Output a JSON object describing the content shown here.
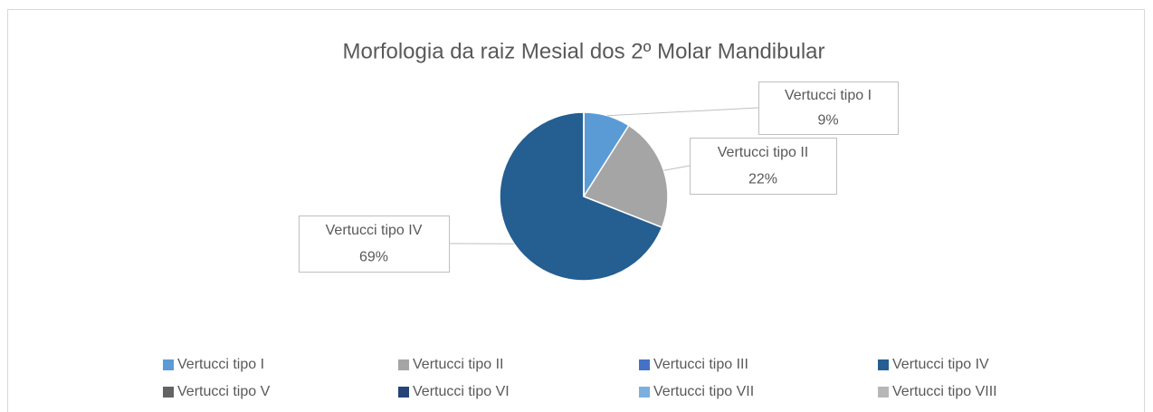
{
  "chart_data": {
    "type": "pie",
    "title": "Morfologia da raiz Mesial dos 2º Molar Mandibular",
    "categories": [
      "Vertucci tipo I",
      "Vertucci tipo II",
      "Vertucci tipo III",
      "Vertucci tipo IV",
      "Vertucci tipo V",
      "Vertucci tipo VI",
      "Vertucci tipo VII",
      "Vertucci tipo VIII"
    ],
    "values": [
      9,
      22,
      0,
      69,
      0,
      0,
      0,
      0
    ],
    "value_labels": [
      "9%",
      "22%",
      null,
      "69%",
      null,
      null,
      null,
      null
    ],
    "colors": [
      "#5b9bd5",
      "#a5a5a5",
      "#4472c4",
      "#255e91",
      "#636363",
      "#264478",
      "#7cafdd",
      "#b7b7b7"
    ],
    "legend": "bottom"
  }
}
